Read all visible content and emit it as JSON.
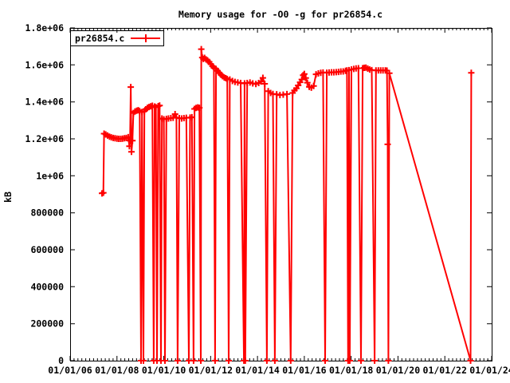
{
  "title": "Memory usage for -O0 -g for pr26854.c",
  "colors": {
    "series": "#ff0000",
    "axis": "#000000",
    "background": "#ffffff",
    "text": "#000000"
  },
  "legend": {
    "label": "pr26854.c",
    "position": "top-left"
  },
  "chart_data": {
    "type": "line",
    "title": "Memory usage for -O0 -g for pr26854.c",
    "xlabel": "",
    "ylabel": "kB",
    "grid": false,
    "legend_position": "top-left",
    "xlim": [
      2006,
      2024
    ],
    "ylim": [
      0,
      1800000
    ],
    "x_tick_years": [
      2006,
      2008,
      2010,
      2012,
      2014,
      2016,
      2018,
      2020,
      2022,
      2024
    ],
    "x_tick_labels": [
      "01/01/06",
      "01/01/08",
      "01/01/10",
      "01/01/12",
      "01/01/14",
      "01/01/16",
      "01/01/18",
      "01/01/20",
      "01/01/22",
      "01/01/24"
    ],
    "x_minor_per_major": 12,
    "y_tick_values": [
      0,
      200000,
      400000,
      600000,
      800000,
      1000000,
      1200000,
      1400000,
      1600000,
      1800000
    ],
    "y_tick_labels": [
      "0",
      "200000",
      "400000",
      "600000",
      "800000",
      "1e+06",
      "1.2e+06",
      "1.4e+06",
      "1.6e+06",
      "1.8e+06"
    ],
    "series": [
      {
        "name": "pr26854.c",
        "color": "#ff0000",
        "marker": "plus",
        "points": [
          [
            2007.36,
            905000
          ],
          [
            2007.42,
            908000
          ],
          [
            2007.45,
            1228000
          ],
          [
            2007.52,
            1224000
          ],
          [
            2007.6,
            1218000
          ],
          [
            2007.68,
            1212000
          ],
          [
            2007.76,
            1208000
          ],
          [
            2007.84,
            1205000
          ],
          [
            2007.92,
            1203000
          ],
          [
            2008.0,
            1201000
          ],
          [
            2008.08,
            1200000
          ],
          [
            2008.16,
            1200000
          ],
          [
            2008.24,
            1201000
          ],
          [
            2008.32,
            1203000
          ],
          [
            2008.4,
            1205000
          ],
          [
            2008.48,
            1209000
          ],
          [
            2008.53,
            1160000
          ],
          [
            2008.56,
            1190000
          ],
          [
            2008.59,
            1480000
          ],
          [
            2008.62,
            1130000
          ],
          [
            2008.66,
            1190000
          ],
          [
            2008.7,
            1340000
          ],
          [
            2008.77,
            1348000
          ],
          [
            2008.84,
            1352000
          ],
          [
            2008.91,
            1355000
          ],
          [
            2008.97,
            1350000
          ],
          [
            2009.03,
            0
          ],
          [
            2009.07,
            1345000
          ],
          [
            2009.13,
            0
          ],
          [
            2009.17,
            1350000
          ],
          [
            2009.23,
            1360000
          ],
          [
            2009.3,
            1368000
          ],
          [
            2009.37,
            1372000
          ],
          [
            2009.44,
            1376000
          ],
          [
            2009.51,
            1379000
          ],
          [
            2009.57,
            0
          ],
          [
            2009.61,
            1375000
          ],
          [
            2009.66,
            1371000
          ],
          [
            2009.71,
            0
          ],
          [
            2009.76,
            1377000
          ],
          [
            2009.82,
            1380000
          ],
          [
            2009.88,
            0
          ],
          [
            2009.92,
            1310000
          ],
          [
            2010.0,
            1306000
          ],
          [
            2010.05,
            0
          ],
          [
            2010.11,
            1308000
          ],
          [
            2010.2,
            1310000
          ],
          [
            2010.3,
            1312000
          ],
          [
            2010.4,
            1314000
          ],
          [
            2010.48,
            1334000
          ],
          [
            2010.54,
            1315000
          ],
          [
            2010.59,
            0
          ],
          [
            2010.66,
            1312000
          ],
          [
            2010.76,
            1310000
          ],
          [
            2010.86,
            1312000
          ],
          [
            2010.96,
            1314000
          ],
          [
            2011.07,
            0
          ],
          [
            2011.12,
            1315000
          ],
          [
            2011.2,
            1317000
          ],
          [
            2011.27,
            0
          ],
          [
            2011.31,
            1362000
          ],
          [
            2011.38,
            1367000
          ],
          [
            2011.45,
            1370000
          ],
          [
            2011.52,
            1368000
          ],
          [
            2011.58,
            0
          ],
          [
            2011.6,
            1685000
          ],
          [
            2011.64,
            1640000
          ],
          [
            2011.69,
            1632000
          ],
          [
            2011.74,
            1638000
          ],
          [
            2011.8,
            1630000
          ],
          [
            2011.87,
            1624000
          ],
          [
            2011.94,
            1616000
          ],
          [
            2012.01,
            1604000
          ],
          [
            2012.08,
            1593000
          ],
          [
            2012.14,
            1584000
          ],
          [
            2012.19,
            0
          ],
          [
            2012.23,
            1578000
          ],
          [
            2012.3,
            1568000
          ],
          [
            2012.37,
            1557000
          ],
          [
            2012.44,
            1547000
          ],
          [
            2012.51,
            1539000
          ],
          [
            2012.58,
            1532000
          ],
          [
            2012.65,
            1528000
          ],
          [
            2012.71,
            1524000
          ],
          [
            2012.77,
            0
          ],
          [
            2012.82,
            1521000
          ],
          [
            2012.93,
            1513000
          ],
          [
            2013.04,
            1508000
          ],
          [
            2013.16,
            1505000
          ],
          [
            2013.28,
            1502000
          ],
          [
            2013.42,
            0
          ],
          [
            2013.45,
            1500000
          ],
          [
            2013.48,
            0
          ],
          [
            2013.56,
            1502000
          ],
          [
            2013.68,
            1505000
          ],
          [
            2013.8,
            1500000
          ],
          [
            2013.93,
            1497000
          ],
          [
            2014.05,
            1502000
          ],
          [
            2014.15,
            1510000
          ],
          [
            2014.23,
            1530000
          ],
          [
            2014.31,
            1498000
          ],
          [
            2014.4,
            0
          ],
          [
            2014.46,
            1458000
          ],
          [
            2014.56,
            1448000
          ],
          [
            2014.66,
            1443000
          ],
          [
            2014.74,
            0
          ],
          [
            2014.82,
            1441000
          ],
          [
            2014.96,
            1437000
          ],
          [
            2015.1,
            1439000
          ],
          [
            2015.26,
            1442000
          ],
          [
            2015.42,
            0
          ],
          [
            2015.5,
            1448000
          ],
          [
            2015.58,
            1462000
          ],
          [
            2015.66,
            1473000
          ],
          [
            2015.74,
            1489000
          ],
          [
            2015.82,
            1506000
          ],
          [
            2015.89,
            1521000
          ],
          [
            2015.95,
            1544000
          ],
          [
            2016.0,
            1551000
          ],
          [
            2016.06,
            1529000
          ],
          [
            2016.13,
            1504000
          ],
          [
            2016.21,
            1481000
          ],
          [
            2016.3,
            1477000
          ],
          [
            2016.4,
            1486000
          ],
          [
            2016.5,
            1549000
          ],
          [
            2016.6,
            1554000
          ],
          [
            2016.7,
            1557000
          ],
          [
            2016.8,
            1559000
          ],
          [
            2016.89,
            0
          ],
          [
            2016.96,
            1558000
          ],
          [
            2017.06,
            1559000
          ],
          [
            2017.16,
            1560000
          ],
          [
            2017.26,
            1560000
          ],
          [
            2017.36,
            1561000
          ],
          [
            2017.46,
            1562000
          ],
          [
            2017.56,
            1564000
          ],
          [
            2017.66,
            1565000
          ],
          [
            2017.76,
            1568000
          ],
          [
            2017.82,
            1570000
          ],
          [
            2017.87,
            0
          ],
          [
            2017.91,
            1572000
          ],
          [
            2017.94,
            0
          ],
          [
            2018.01,
            1575000
          ],
          [
            2018.11,
            1578000
          ],
          [
            2018.21,
            1581000
          ],
          [
            2018.31,
            1582000
          ],
          [
            2018.42,
            0
          ],
          [
            2018.49,
            1582000
          ],
          [
            2018.56,
            1584000
          ],
          [
            2018.63,
            1585000
          ],
          [
            2018.71,
            1580000
          ],
          [
            2018.79,
            1575000
          ],
          [
            2018.88,
            1572000
          ],
          [
            2019.0,
            0
          ],
          [
            2019.06,
            1570000
          ],
          [
            2019.16,
            1570000
          ],
          [
            2019.26,
            1570000
          ],
          [
            2019.36,
            1570000
          ],
          [
            2019.46,
            1570000
          ],
          [
            2019.53,
            1569000
          ],
          [
            2019.56,
            1170000
          ],
          [
            2019.59,
            0
          ],
          [
            2019.63,
            1555000
          ],
          [
            2023.1,
            0
          ],
          [
            2023.13,
            1557000
          ]
        ]
      }
    ]
  }
}
